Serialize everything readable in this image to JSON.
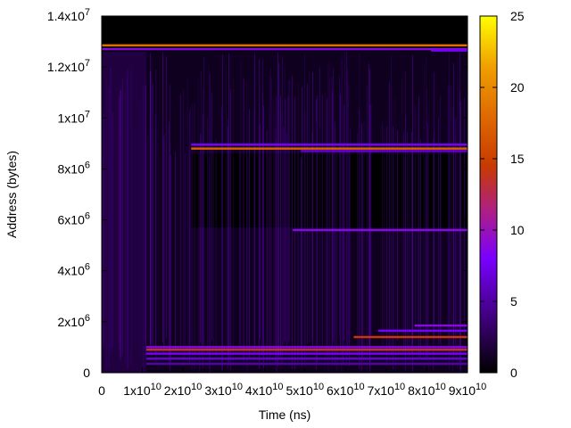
{
  "chart_data": {
    "type": "heatmap",
    "title": "",
    "xlabel": "Time (ns)",
    "ylabel": "Address (bytes)",
    "xlim": [
      0,
      90000000000
    ],
    "ylim": [
      0,
      14000000
    ],
    "x_ticks": [
      {
        "value": 0,
        "mant": "0",
        "exp": ""
      },
      {
        "value": 10000000000,
        "mant": "1x10",
        "exp": "10"
      },
      {
        "value": 20000000000,
        "mant": "2x10",
        "exp": "10"
      },
      {
        "value": 30000000000,
        "mant": "3x10",
        "exp": "10"
      },
      {
        "value": 40000000000,
        "mant": "4x10",
        "exp": "10"
      },
      {
        "value": 50000000000,
        "mant": "5x10",
        "exp": "10"
      },
      {
        "value": 60000000000,
        "mant": "6x10",
        "exp": "10"
      },
      {
        "value": 70000000000,
        "mant": "7x10",
        "exp": "10"
      },
      {
        "value": 80000000000,
        "mant": "8x10",
        "exp": "10"
      },
      {
        "value": 90000000000,
        "mant": "9x10",
        "exp": "10"
      }
    ],
    "y_ticks": [
      {
        "value": 0,
        "mant": "0",
        "exp": ""
      },
      {
        "value": 2000000,
        "mant": "2x10",
        "exp": "6"
      },
      {
        "value": 4000000,
        "mant": "4x10",
        "exp": "6"
      },
      {
        "value": 6000000,
        "mant": "6x10",
        "exp": "6"
      },
      {
        "value": 8000000,
        "mant": "8x10",
        "exp": "6"
      },
      {
        "value": 10000000,
        "mant": "1x10",
        "exp": "7"
      },
      {
        "value": 12000000,
        "mant": "1.2x10",
        "exp": "7"
      },
      {
        "value": 14000000,
        "mant": "1.4x10",
        "exp": "7"
      }
    ],
    "colorbar": {
      "range": [
        0,
        25
      ],
      "ticks": [
        0,
        5,
        10,
        15,
        20,
        25
      ],
      "palette": [
        "#000000",
        "#3a0070",
        "#7a00ff",
        "#b0207f",
        "#c83a00",
        "#e06a00",
        "#f0a000",
        "#ffff00"
      ]
    },
    "background_value": 0,
    "bands": [
      {
        "x0": 0,
        "x1": 90000000000,
        "y": 12850000,
        "value": 18
      },
      {
        "x0": 0,
        "x1": 90000000000,
        "y": 12700000,
        "value": 8
      },
      {
        "x0": 81000000000,
        "x1": 90000000000,
        "y": 12650000,
        "value": 7
      },
      {
        "x0": 22000000000,
        "x1": 90000000000,
        "y": 8950000,
        "value": 7
      },
      {
        "x0": 22000000000,
        "x1": 90000000000,
        "y": 8800000,
        "value": 17
      },
      {
        "x0": 49000000000,
        "x1": 90000000000,
        "y": 8700000,
        "value": 6
      },
      {
        "x0": 47000000000,
        "x1": 90000000000,
        "y": 5600000,
        "value": 8
      },
      {
        "x0": 77000000000,
        "x1": 90000000000,
        "y": 1850000,
        "value": 8
      },
      {
        "x0": 68000000000,
        "x1": 90000000000,
        "y": 1650000,
        "value": 7
      },
      {
        "x0": 62000000000,
        "x1": 90000000000,
        "y": 1400000,
        "value": 14
      },
      {
        "x0": 11000000000,
        "x1": 90000000000,
        "y": 1000000,
        "value": 8
      },
      {
        "x0": 11000000000,
        "x1": 90000000000,
        "y": 900000,
        "value": 13
      },
      {
        "x0": 11000000000,
        "x1": 90000000000,
        "y": 750000,
        "value": 7
      },
      {
        "x0": 11000000000,
        "x1": 90000000000,
        "y": 550000,
        "value": 6
      },
      {
        "x0": 11000000000,
        "x1": 90000000000,
        "y": 350000,
        "value": 5
      }
    ],
    "shaded_regions": [
      {
        "x0": 0,
        "x1": 90000000000,
        "y0": 0,
        "y1": 12600000,
        "value": 1
      },
      {
        "x0": 22000000000,
        "x1": 90000000000,
        "y0": 5700000,
        "y1": 8600000,
        "value": 0
      },
      {
        "x0": 0,
        "x1": 11000000000,
        "y0": 0,
        "y1": 12600000,
        "value": 2
      }
    ]
  }
}
